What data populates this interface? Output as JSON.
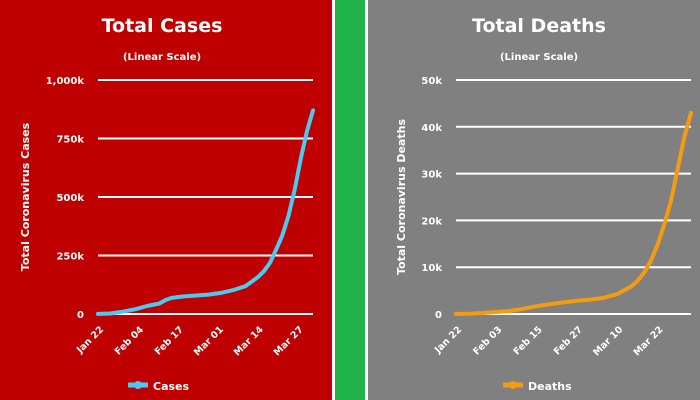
{
  "chart_data": [
    {
      "type": "line",
      "title": "Total Cases",
      "subtitle": "(Linear Scale)",
      "xlabel": "",
      "ylabel": "Total Coronavirus Cases",
      "yticks": [
        "0",
        "250k",
        "500k",
        "750k",
        "1,000k"
      ],
      "ylim": [
        0,
        1000000
      ],
      "xticks": [
        "Jan 22",
        "Feb 04",
        "Feb 17",
        "Mar 01",
        "Mar 14",
        "Mar 27"
      ],
      "grid": true,
      "legend_position": "bottom",
      "colors": {
        "background": "#bf0000",
        "line": "#4cc9f0"
      },
      "series": [
        {
          "name": "Cases",
          "x": [
            "Jan 22",
            "Jan 26",
            "Jan 30",
            "Feb 03",
            "Feb 07",
            "Feb 11",
            "Feb 13",
            "Feb 15",
            "Feb 19",
            "Feb 23",
            "Feb 27",
            "Mar 02",
            "Mar 06",
            "Mar 10",
            "Mar 14",
            "Mar 16",
            "Mar 18",
            "Mar 20",
            "Mar 22",
            "Mar 24",
            "Mar 26",
            "Mar 28",
            "Mar 30",
            "Apr 01"
          ],
          "values": [
            600,
            2000,
            9800,
            20000,
            34000,
            45000,
            60000,
            69000,
            75000,
            79000,
            83000,
            90000,
            102000,
            119000,
            157000,
            183000,
            219000,
            275000,
            336000,
            418000,
            530000,
            662000,
            780000,
            870000
          ]
        }
      ]
    },
    {
      "type": "line",
      "title": "Total Deaths",
      "subtitle": "(Linear Scale)",
      "xlabel": "",
      "ylabel": "Total Coronavirus Deaths",
      "yticks": [
        "0",
        "10k",
        "20k",
        "30k",
        "40k",
        "50k"
      ],
      "ylim": [
        0,
        50000
      ],
      "xticks": [
        "Jan 22",
        "Feb 03",
        "Feb 15",
        "Feb 27",
        "Mar 10",
        "Mar 22"
      ],
      "grid": true,
      "legend_position": "bottom",
      "colors": {
        "background": "#808080",
        "line": "#f39c12"
      },
      "series": [
        {
          "name": "Deaths",
          "x": [
            "Jan 22",
            "Jan 26",
            "Jan 30",
            "Feb 03",
            "Feb 07",
            "Feb 11",
            "Feb 15",
            "Feb 19",
            "Feb 23",
            "Feb 27",
            "Mar 02",
            "Mar 06",
            "Mar 10",
            "Mar 14",
            "Mar 16",
            "Mar 18",
            "Mar 20",
            "Mar 22",
            "Mar 24",
            "Mar 26",
            "Mar 28",
            "Mar 30",
            "Apr 01"
          ],
          "values": [
            17,
            56,
            213,
            427,
            640,
            1113,
            1666,
            2122,
            2469,
            2810,
            3085,
            3460,
            4260,
            5820,
            7000,
            8800,
            11300,
            14700,
            19000,
            24100,
            30900,
            37800,
            43000
          ]
        }
      ]
    }
  ]
}
